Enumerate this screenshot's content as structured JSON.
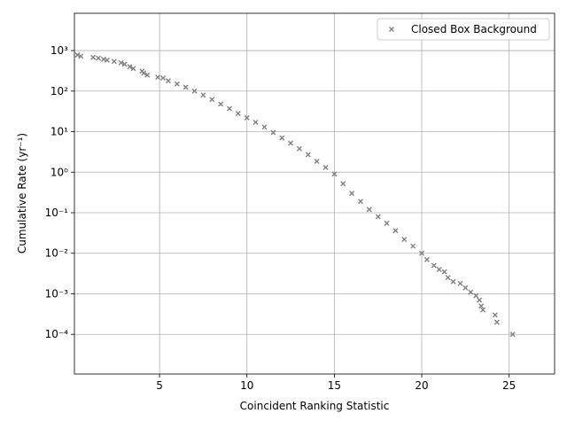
{
  "chart_data": {
    "type": "scatter",
    "xlabel": "Coincident Ranking Statistic",
    "ylabel": "Cumulative Rate (yr⁻¹)",
    "yscale": "log",
    "grid": true,
    "legend": "upper right",
    "xlim": [
      0.13,
      27.6
    ],
    "ylim": [
      1.05e-05,
      8300
    ],
    "xticks": [
      5,
      10,
      15,
      20,
      25
    ],
    "yticks": [
      {
        "value": 0.0001,
        "label": "10⁻⁴"
      },
      {
        "value": 0.001,
        "label": "10⁻³"
      },
      {
        "value": 0.01,
        "label": "10⁻²"
      },
      {
        "value": 0.1,
        "label": "10⁻¹"
      },
      {
        "value": 1,
        "label": "10⁰"
      },
      {
        "value": 10,
        "label": "10¹"
      },
      {
        "value": 100,
        "label": "10²"
      },
      {
        "value": 1000,
        "label": "10³"
      }
    ],
    "series": [
      {
        "name": "Closed Box Background",
        "color": "#808080",
        "marker": "x",
        "x": [
          0.3,
          0.5,
          1.2,
          1.5,
          1.8,
          2.0,
          2.4,
          2.8,
          3.0,
          3.3,
          3.5,
          4.0,
          4.1,
          4.3,
          4.9,
          5.2,
          5.5,
          6.0,
          6.5,
          7.0,
          7.5,
          8.0,
          8.5,
          9.0,
          9.5,
          10.0,
          10.5,
          11.0,
          11.5,
          12.0,
          12.5,
          13.0,
          13.5,
          14.0,
          14.5,
          15.0,
          15.5,
          16.0,
          16.5,
          17.0,
          17.5,
          18.0,
          18.5,
          19.0,
          19.5,
          20.0,
          20.3,
          20.7,
          21.0,
          21.3,
          21.5,
          21.8,
          22.2,
          22.5,
          22.8,
          23.1,
          23.3,
          23.4,
          23.5,
          24.2,
          24.3,
          25.2
        ],
        "values": [
          780,
          720,
          680,
          650,
          610,
          580,
          540,
          500,
          460,
          400,
          360,
          310,
          280,
          250,
          220,
          210,
          180,
          150,
          125,
          100,
          80,
          62,
          48,
          37,
          28,
          22,
          17,
          13,
          9.5,
          7,
          5.2,
          3.8,
          2.7,
          1.85,
          1.3,
          0.9,
          0.52,
          0.3,
          0.19,
          0.12,
          0.08,
          0.055,
          0.036,
          0.022,
          0.015,
          0.01,
          0.007,
          0.005,
          0.004,
          0.0035,
          0.0025,
          0.002,
          0.0018,
          0.0014,
          0.0011,
          0.0009,
          0.0007,
          0.0005,
          0.0004,
          0.0003,
          0.0002,
          0.0001
        ]
      }
    ]
  }
}
